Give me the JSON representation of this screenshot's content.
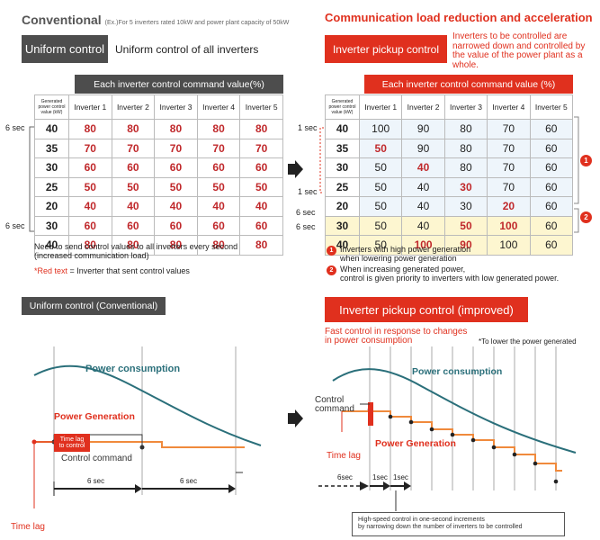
{
  "conventional": {
    "title": "Conventional",
    "subtitle": "(Ex.)For 5 inverters rated 10kW and power plant capacity of 50kW",
    "uniform_label": "Uniform control",
    "uniform_desc": "Uniform control of all inverters",
    "table_header": "Each inverter control command value(%)",
    "gen_header": "Generated power control value (kW)",
    "inverters": [
      "Inverter 1",
      "Inverter 2",
      "Inverter 3",
      "Inverter 4",
      "Inverter 5"
    ],
    "rows": [
      {
        "g": "40",
        "v": [
          "80",
          "80",
          "80",
          "80",
          "80"
        ]
      },
      {
        "g": "35",
        "v": [
          "70",
          "70",
          "70",
          "70",
          "70"
        ]
      },
      {
        "g": "30",
        "v": [
          "60",
          "60",
          "60",
          "60",
          "60"
        ]
      },
      {
        "g": "25",
        "v": [
          "50",
          "50",
          "50",
          "50",
          "50"
        ]
      },
      {
        "g": "20",
        "v": [
          "40",
          "40",
          "40",
          "40",
          "40"
        ]
      },
      {
        "g": "30",
        "v": [
          "60",
          "60",
          "60",
          "60",
          "60"
        ]
      },
      {
        "g": "40",
        "v": [
          "80",
          "80",
          "80",
          "80",
          "80"
        ]
      }
    ],
    "sec_top": "6 sec",
    "sec_bottom": "6 sec",
    "note1": "Need to send control values to all inverters every second",
    "note2": "(increased communication load)",
    "legend_red": "*Red text",
    "legend_rest": " = Inverter that sent control values"
  },
  "improved": {
    "title": "Communication load reduction and acceleration",
    "pickup_label": "Inverter pickup control",
    "pickup_desc": "Inverters to be controlled are narrowed down and controlled by the value of the power plant as a whole.",
    "table_header": "Each inverter control command value (%)",
    "gen_header": "Generated power control value (kW)",
    "inverters": [
      "Inverter 1",
      "Inverter 2",
      "Inverter 3",
      "Inverter 4",
      "Inverter 5"
    ],
    "rows": [
      {
        "g": "40",
        "v": [
          "100",
          "90",
          "80",
          "70",
          "60"
        ],
        "r": [
          0,
          0,
          0,
          0,
          0
        ]
      },
      {
        "g": "35",
        "v": [
          "50",
          "90",
          "80",
          "70",
          "60"
        ],
        "r": [
          1,
          0,
          0,
          0,
          0
        ]
      },
      {
        "g": "30",
        "v": [
          "50",
          "40",
          "80",
          "70",
          "60"
        ],
        "r": [
          0,
          1,
          0,
          0,
          0
        ]
      },
      {
        "g": "25",
        "v": [
          "50",
          "40",
          "30",
          "70",
          "60"
        ],
        "r": [
          0,
          0,
          1,
          0,
          0
        ]
      },
      {
        "g": "20",
        "v": [
          "50",
          "40",
          "30",
          "20",
          "60"
        ],
        "r": [
          0,
          0,
          0,
          1,
          0
        ]
      },
      {
        "g": "30",
        "v": [
          "50",
          "40",
          "50",
          "100",
          "60"
        ],
        "r": [
          0,
          0,
          1,
          1,
          0
        ]
      },
      {
        "g": "40",
        "v": [
          "50",
          "100",
          "90",
          "100",
          "60"
        ],
        "r": [
          0,
          1,
          1,
          0,
          0
        ]
      }
    ],
    "sec1_top": "1 sec",
    "sec1_bottom": "1 sec",
    "sec6_a": "6 sec",
    "sec6_b": "6 sec",
    "badge1": "1",
    "badge2": "2",
    "note1a": "Inverters with high power generation",
    "note1b": "when lowering power generation",
    "note2a": "When increasing generated power,",
    "note2b": "control is given priority to inverters with low generated power."
  },
  "bottom_left": {
    "title": "Uniform control (Conventional)",
    "power_consumption": "Power consumption",
    "power_generation": "Power Generation",
    "time_lag_box1": "Time lag",
    "time_lag_box2": "to control",
    "control_command": "Control command",
    "sec_a": "6 sec",
    "sec_b": "6 sec",
    "time_lag": "Time lag"
  },
  "bottom_right": {
    "title": "Inverter pickup control (improved)",
    "sub1": "Fast control in response to changes",
    "sub2": "in power consumption",
    "footnote": "*To lower the power generated",
    "power_consumption": "Power consumption",
    "control_command1": "Control",
    "control_command2": "command",
    "time_lag": "Time lag",
    "power_generation": "Power Generation",
    "sec6": "6sec",
    "sec1a": "1sec",
    "sec1b": "1sec",
    "callout1": "High-speed control in one-second increments",
    "callout2": "by narrowing down the number of inverters to be controlled"
  },
  "colors": {
    "red": "#e0301e",
    "dark": "#4d4d4d",
    "teal": "#2a6f7a",
    "orange": "#f08a3c",
    "yellow": "#fdf6d0",
    "blue": "#e8f1fa"
  }
}
